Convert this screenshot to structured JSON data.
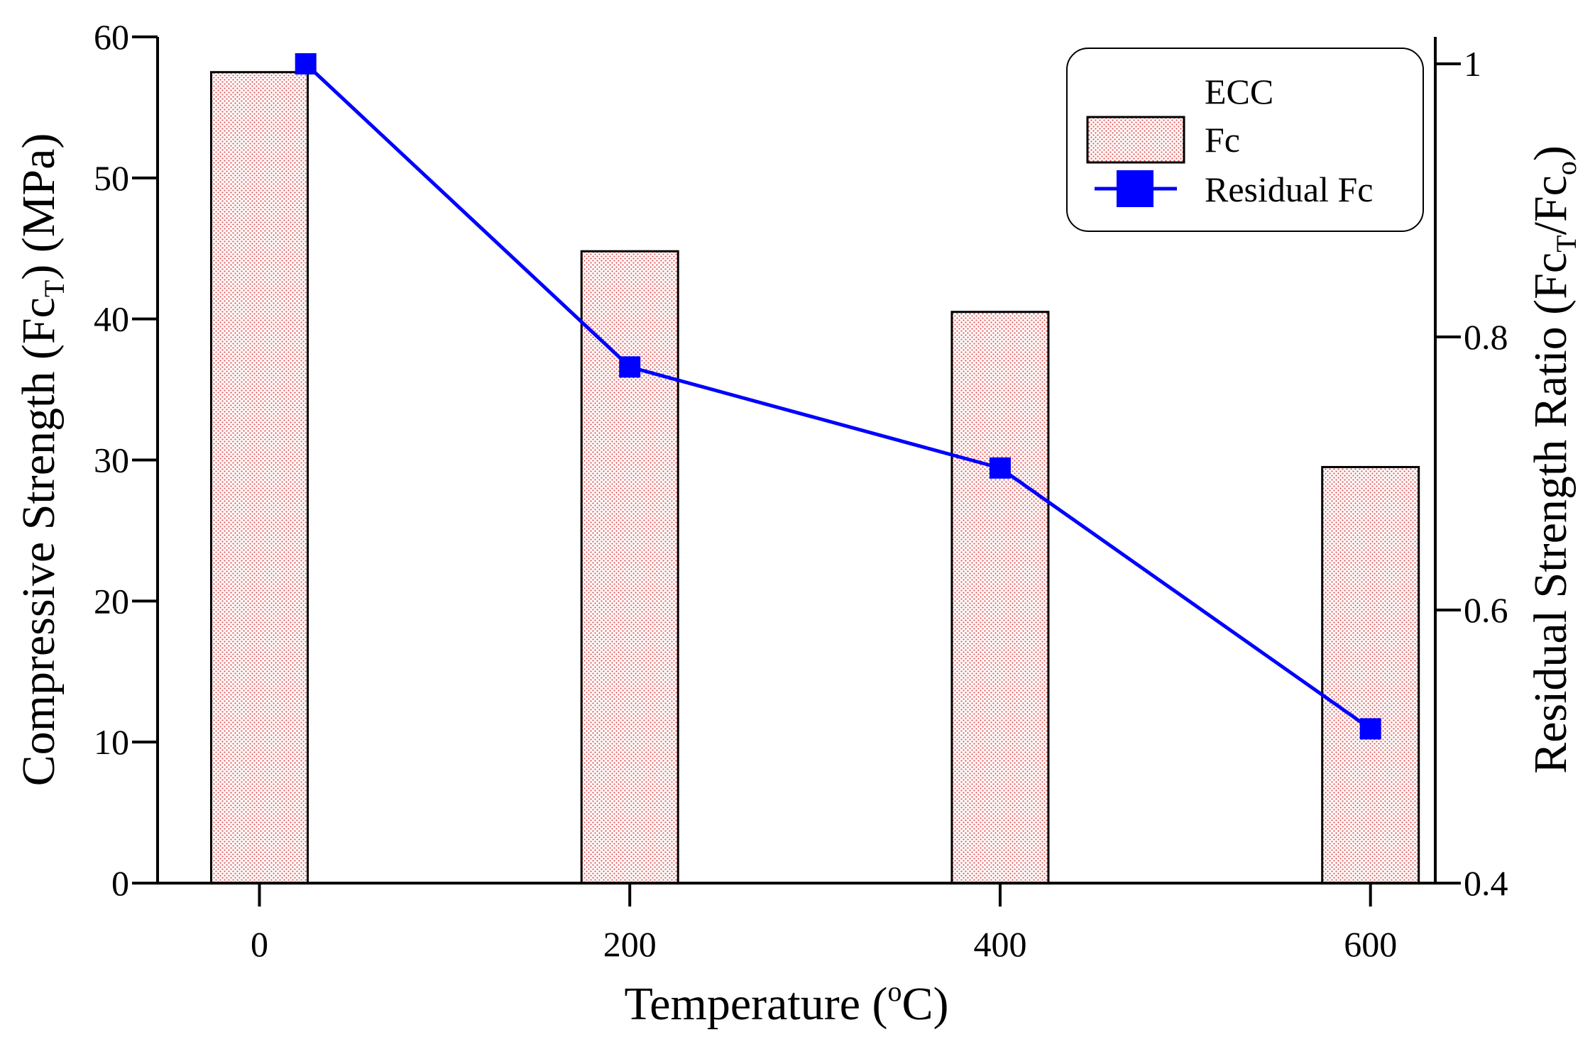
{
  "chart_data": {
    "type": "bar+line",
    "x_values": [
      0,
      200,
      400,
      600
    ],
    "xlabel": "Temperature (",
    "xlabel_sup": "o",
    "xlabel_end": "C)",
    "xlim": [
      -55,
      635
    ],
    "x_ticks": [
      0,
      200,
      400,
      600
    ],
    "x_tick_labels": [
      "0",
      "200",
      "400",
      "600"
    ],
    "ylabel": {
      "main": "Compressive Strength (Fc",
      "sub": "T",
      "end": ") (MPa)"
    },
    "ylim": [
      0,
      60
    ],
    "y_ticks": [
      0,
      10,
      20,
      30,
      40,
      50,
      60
    ],
    "y_tick_labels": [
      "0",
      "10",
      "20",
      "30",
      "40",
      "50",
      "60"
    ],
    "y2label": {
      "main": "Residual Strength Ratio (Fc",
      "sub1": "T",
      "mid": "/Fc",
      "sub2": "o",
      "end": ")"
    },
    "y2lim": [
      0.4,
      1.02
    ],
    "y2_ticks": [
      0.4,
      0.6,
      0.8,
      1.0
    ],
    "y2_tick_labels": [
      "0.4",
      "0.6",
      "0.8",
      "1"
    ],
    "series": [
      {
        "name": "Fc",
        "type": "bar",
        "axis": "left",
        "color": "#e05a5a",
        "x": [
          0,
          200,
          400,
          600
        ],
        "values": [
          57.5,
          44.8,
          40.5,
          29.5
        ]
      },
      {
        "name": "Residual Fc",
        "type": "line",
        "axis": "right",
        "color": "#0000ff",
        "marker": "square",
        "x": [
          25,
          200,
          400,
          600
        ],
        "values": [
          1.0,
          0.778,
          0.704,
          0.513
        ]
      }
    ],
    "legend": {
      "title": "ECC",
      "entries": [
        "Fc",
        "Residual Fc"
      ],
      "position": "top-right"
    }
  }
}
